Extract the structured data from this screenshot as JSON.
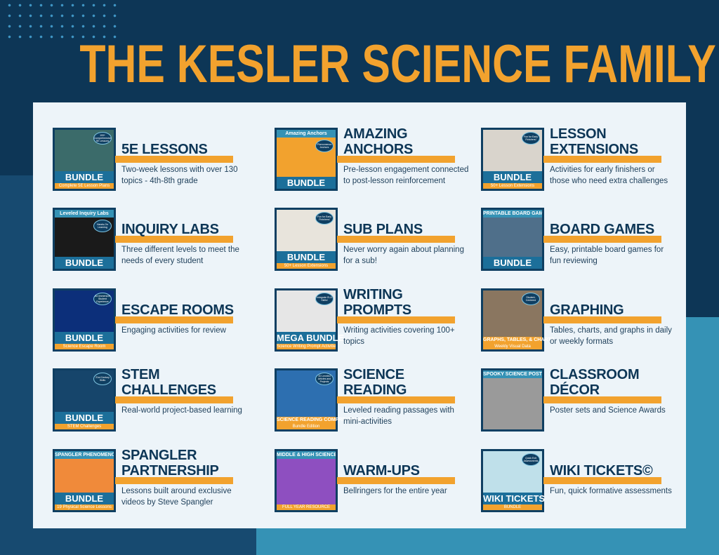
{
  "title": "THE KESLER SCIENCE FAMILY",
  "colors": {
    "navy": "#0d3656",
    "orange": "#f2a22e",
    "light_blue": "#3592b5",
    "panel": "#edf4f9"
  },
  "items": [
    {
      "title": "5E LESSONS",
      "desc": "Two-week lessons with over 130 topics - 4th-8th grade",
      "thumb": {
        "caption": "",
        "badge": "100+ Comprehensive 5E Lessons",
        "label": "BUNDLE",
        "sub": "Complete 5E Lesson Plans",
        "img": "#3b6b6a"
      }
    },
    {
      "title": "AMAZING ANCHORS",
      "desc": "Pre-lesson engagement connected to post-lesson reinforcement",
      "thumb": {
        "caption": "Amazing Anchors",
        "badge": "Phenomenon Anchors",
        "label": "BUNDLE",
        "sub": "",
        "img": "#f2a22e"
      }
    },
    {
      "title": "LESSON EXTENSIONS",
      "desc": "Activities for early finishers or those who need extra challenges",
      "thumb": {
        "caption": "",
        "badge": "Fun for Early Finishers!",
        "label": "BUNDLE",
        "sub": "50+ Lesson Extensions",
        "img": "#d9d4cc"
      }
    },
    {
      "title": "INQUIRY LABS",
      "desc": "Three different levels to meet the needs of every student",
      "thumb": {
        "caption": "Leveled Inquiry Labs",
        "badge": "Hands-On Learning",
        "label": "BUNDLE",
        "sub": "",
        "img": "#1a1a1a"
      }
    },
    {
      "title": "SUB PLANS",
      "desc": "Never worry again about planning for a sub!",
      "thumb": {
        "caption": "",
        "badge": "Fun for Early Finishers!",
        "label": "BUNDLE",
        "sub": "50+ Lesson Extensions",
        "img": "#e8e4dc"
      }
    },
    {
      "title": "BOARD GAMES",
      "desc": "Easy, printable board games for fun reviewing",
      "thumb": {
        "caption": "PRINTABLE BOARD GAME",
        "badge": "",
        "label": "BUNDLE",
        "sub": "",
        "img": "#4f6f8a"
      }
    },
    {
      "title": "ESCAPE ROOMS",
      "desc": "Engaging activities for review",
      "thumb": {
        "caption": "",
        "badge": "An Immersive Student Experience",
        "label": "BUNDLE",
        "sub": "Science Escape Room",
        "img": "#0c2f7a"
      }
    },
    {
      "title": "WRITING PROMPTS",
      "desc": "Writing activities covering 100+ topics",
      "thumb": {
        "caption": "",
        "badge": "Integrate ELA Skills!",
        "label": "MEGA BUNDLE",
        "sub": "Science Writing Prompt Activities",
        "img": "#e6e6e6"
      }
    },
    {
      "title": "GRAPHING",
      "desc": "Tables, charts, and graphs in daily or weekly formats",
      "thumb": {
        "caption": "",
        "badge": "Student-Centered",
        "label": "GRAPHS, TABLES, & CHARTS",
        "sub": "Weekly Visual Data",
        "img": "#8a7660"
      }
    },
    {
      "title": "STEM CHALLENGES",
      "desc": "Real-world project-based learning",
      "thumb": {
        "caption": "",
        "badge": "21st Century Skills",
        "label": "BUNDLE",
        "sub": "STEM Challenges",
        "img": "#16456b"
      }
    },
    {
      "title": "SCIENCE READING",
      "desc": "Leveled reading passages with mini-activities",
      "thumb": {
        "caption": "",
        "badge": "40 Leveled Articles and Projects",
        "label": "SCIENCE READING COMPREHENSION",
        "sub": "Bundle Edition",
        "img": "#2d6fb0"
      }
    },
    {
      "title": "CLASSROOM DÉCOR",
      "desc": "Poster sets and Science Awards",
      "thumb": {
        "caption": "SPOOKY SCIENCE POSTERS",
        "badge": "",
        "label": "",
        "sub": "",
        "img": "#9a9a9a"
      }
    },
    {
      "title": "SPANGLER PARTNERSHIP",
      "desc": "Lessons built around exclusive videos by Steve Spangler",
      "thumb": {
        "caption": "SPANGLER PHENOMENON",
        "badge": "",
        "label": "BUNDLE",
        "sub": "19 Physical Science Lessons",
        "img": "#f08a3a"
      }
    },
    {
      "title": "WARM-UPS",
      "desc": "Bellringers for the entire year",
      "thumb": {
        "caption": "MIDDLE & HIGH SCIENCE BELL-RINGERS",
        "badge": "",
        "label": "",
        "sub": "FULL YEAR RESOURCE",
        "img": "#8e4fc0"
      }
    },
    {
      "title": "WIKI TICKETS©",
      "desc": "Fun, quick formative assessments",
      "thumb": {
        "caption": "",
        "badge": "Quick Exit Assessments",
        "label": "WIKI TICKETS",
        "sub": "BUNDLE",
        "img": "#bfe0ea"
      }
    }
  ]
}
